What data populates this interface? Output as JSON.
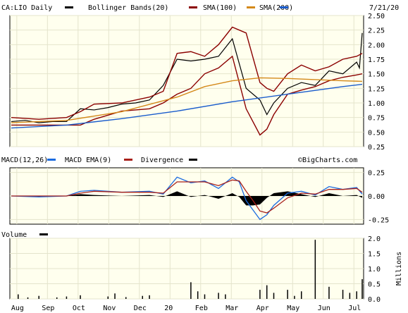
{
  "header": {
    "symbol_label": "CA:LIO Daily",
    "bollinger_label": "Bollinger Bands(20)",
    "sma100_label": "SMA(100)",
    "sma200_label": "SMA(200)",
    "date_label": "7/21/20",
    "watermark": "©BigCharts.com"
  },
  "macd_header": {
    "macd_label": "MACD(12,26)",
    "ema_label": "MACD EMA(9)",
    "divergence_label": "Divergence"
  },
  "volume_header": {
    "volume_label": "Volume",
    "units_label": "Millions"
  },
  "colors": {
    "background": "#ffffee",
    "price": "#000000",
    "bollinger": "#8b0000",
    "sma100": "#d4891a",
    "sma200": "#1a5ccc",
    "macd": "#1a6be0",
    "ema": "#a8201a",
    "divergence": "#000000"
  },
  "chart_data": [
    {
      "type": "line",
      "title": "CA:LIO Daily",
      "x_ticks": [
        "Aug",
        "Sep",
        "Oct",
        "Nov",
        "Dec",
        "20",
        "Feb",
        "Mar",
        "Apr",
        "May",
        "Jun",
        "Jul"
      ],
      "ylim": [
        0.25,
        2.5
      ],
      "y_ticks": [
        "2.50",
        "2.25",
        "2.00",
        "1.75",
        "1.50",
        "1.25",
        "1.00",
        "0.75",
        "0.50",
        "0.25"
      ],
      "series": [
        {
          "name": "CA:LIO Daily",
          "x": [
            0,
            10,
            20,
            30,
            40,
            50,
            60,
            70,
            80,
            90,
            100,
            110,
            120,
            130,
            140,
            150,
            160,
            170,
            180,
            185,
            190,
            200,
            210,
            220,
            230,
            240,
            250,
            252,
            254
          ],
          "values": [
            0.68,
            0.7,
            0.66,
            0.68,
            0.68,
            0.9,
            0.88,
            0.92,
            0.98,
            1.0,
            1.05,
            1.3,
            1.75,
            1.72,
            1.75,
            1.8,
            2.1,
            1.25,
            1.05,
            0.8,
            1.0,
            1.25,
            1.35,
            1.3,
            1.55,
            1.5,
            1.7,
            1.6,
            2.2
          ]
        },
        {
          "name": "Bollinger Bands(20)",
          "x": [
            0,
            20,
            40,
            50,
            60,
            80,
            100,
            110,
            120,
            130,
            140,
            150,
            160,
            170,
            180,
            185,
            190,
            200,
            210,
            220,
            230,
            240,
            250,
            254
          ],
          "values": [
            0.75,
            0.72,
            0.75,
            0.85,
            0.98,
            1.0,
            1.1,
            1.2,
            1.85,
            1.88,
            1.8,
            2.0,
            2.3,
            2.2,
            1.35,
            1.25,
            1.2,
            1.5,
            1.65,
            1.55,
            1.62,
            1.75,
            1.8,
            1.85
          ]
        },
        {
          "name": "Bollinger Bands(20) lower",
          "x": [
            0,
            20,
            40,
            50,
            60,
            80,
            100,
            110,
            120,
            130,
            140,
            150,
            160,
            170,
            180,
            185,
            190,
            200,
            210,
            220,
            230,
            240,
            250,
            254
          ],
          "values": [
            0.62,
            0.62,
            0.62,
            0.62,
            0.72,
            0.86,
            0.9,
            1.0,
            1.15,
            1.25,
            1.5,
            1.6,
            1.8,
            0.9,
            0.45,
            0.55,
            0.8,
            1.15,
            1.22,
            1.28,
            1.38,
            1.44,
            1.48,
            1.5
          ]
        },
        {
          "name": "SMA(100)",
          "x": [
            0,
            40,
            80,
            120,
            140,
            160,
            180,
            200,
            220,
            240,
            254
          ],
          "values": [
            0.66,
            0.7,
            0.85,
            1.1,
            1.28,
            1.38,
            1.43,
            1.42,
            1.4,
            1.38,
            1.37
          ]
        },
        {
          "name": "SMA(200)",
          "x": [
            0,
            40,
            80,
            120,
            160,
            200,
            240,
            254
          ],
          "values": [
            0.57,
            0.62,
            0.73,
            0.86,
            1.02,
            1.15,
            1.28,
            1.32
          ]
        }
      ]
    },
    {
      "type": "line",
      "title": "MACD(12,26)",
      "ylim": [
        -0.3,
        0.3
      ],
      "y_ticks": [
        "0.25",
        "0.00",
        "-0.25"
      ],
      "series": [
        {
          "name": "MACD(12,26)",
          "x": [
            0,
            20,
            40,
            50,
            60,
            80,
            100,
            110,
            120,
            130,
            140,
            150,
            160,
            165,
            170,
            175,
            180,
            185,
            190,
            200,
            210,
            220,
            230,
            240,
            250,
            254
          ],
          "values": [
            0,
            -0.01,
            0,
            0.05,
            0.06,
            0.04,
            0.05,
            0.02,
            0.2,
            0.14,
            0.16,
            0.08,
            0.2,
            0.15,
            -0.05,
            -0.15,
            -0.25,
            -0.2,
            -0.1,
            0.03,
            0.05,
            0.01,
            0.1,
            0.07,
            0.09,
            0.02
          ]
        },
        {
          "name": "MACD EMA(9)",
          "x": [
            0,
            20,
            40,
            50,
            60,
            80,
            100,
            110,
            120,
            130,
            140,
            150,
            160,
            165,
            170,
            175,
            180,
            185,
            190,
            200,
            210,
            220,
            230,
            240,
            250,
            254
          ],
          "values": [
            0,
            0,
            0,
            0.03,
            0.05,
            0.04,
            0.04,
            0.03,
            0.15,
            0.15,
            0.15,
            0.11,
            0.17,
            0.16,
            0.05,
            -0.05,
            -0.16,
            -0.18,
            -0.13,
            -0.02,
            0.03,
            0.02,
            0.07,
            0.07,
            0.08,
            0.04
          ]
        }
      ]
    },
    {
      "type": "bar",
      "title": "Volume",
      "ylabel": "Millions",
      "ylim": [
        0,
        2.0
      ],
      "y_ticks": [
        "2.0",
        "1.5",
        "1.0",
        "0.5",
        "0.0"
      ],
      "series": [
        {
          "name": "Volume",
          "x": [
            5,
            12,
            20,
            33,
            40,
            50,
            70,
            75,
            83,
            95,
            100,
            130,
            135,
            140,
            150,
            155,
            180,
            185,
            190,
            200,
            205,
            210,
            220,
            230,
            240,
            245,
            250,
            254
          ],
          "values": [
            0.15,
            0.05,
            0.1,
            0.05,
            0.08,
            0.12,
            0.08,
            0.18,
            0.06,
            0.1,
            0.12,
            0.55,
            0.25,
            0.15,
            0.2,
            0.15,
            0.3,
            0.45,
            0.2,
            0.3,
            0.1,
            0.25,
            1.95,
            0.4,
            0.3,
            0.2,
            0.25,
            0.65
          ]
        }
      ]
    }
  ]
}
